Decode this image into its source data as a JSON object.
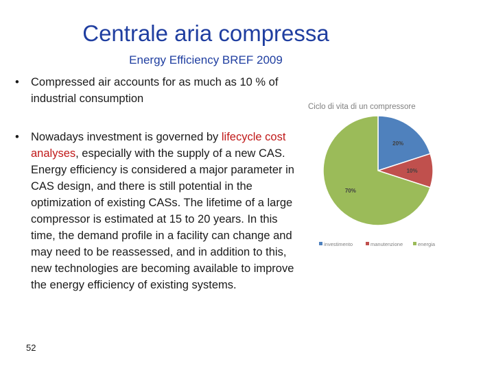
{
  "slide": {
    "title": "Centrale aria compressa",
    "subtitle": "Energy Efficiency BREF 2009",
    "bullet_char": "•",
    "bullet1": {
      "text": "Compressed air accounts for as much as 10 % of industrial consumption"
    },
    "bullet2": {
      "before": "Nowadays investment is governed by ",
      "highlight": "lifecycle cost analyses",
      "after": ", especially with the supply of a new CAS. Energy efficiency is considered a major parameter in CAS design, and there is still potential in the optimization of existing CASs. The lifetime of a large compressor is estimated at 15 to 20 years. In this time, the demand profile in a facility can change and may need to be reassessed, and in addition to this, new technologies are becoming available to improve the energy efficiency of existing systems."
    },
    "page_number": "52",
    "highlight_color": "#c01818"
  },
  "chart_data": {
    "type": "pie",
    "title": "Ciclo di vita di un compressore",
    "categories": [
      "investimento",
      "manutenzione",
      "energia"
    ],
    "values": [
      20,
      10,
      70
    ],
    "data_labels": [
      "20%",
      "10%",
      "70%"
    ],
    "colors": [
      "#4f81bd",
      "#c0504d",
      "#9bbb59"
    ],
    "legend_position": "bottom"
  }
}
